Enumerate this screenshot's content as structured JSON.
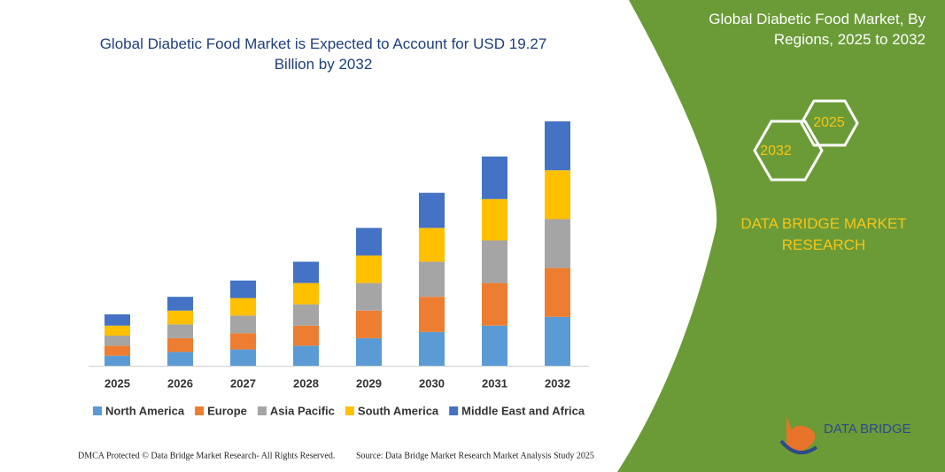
{
  "chart_data": {
    "type": "stacked_bar",
    "title": "Global Diabetic Food Market is Expected to Account for USD 19.27 Billion by 2032",
    "categories": [
      "2025",
      "2026",
      "2027",
      "2028",
      "2029",
      "2030",
      "2031",
      "2032"
    ],
    "series": [
      {
        "name": "North America",
        "color": "#5b9bd5",
        "values": [
          0.8,
          1.1,
          1.3,
          1.6,
          2.2,
          2.7,
          3.2,
          3.9
        ]
      },
      {
        "name": "Europe",
        "color": "#ed7d31",
        "values": [
          0.8,
          1.1,
          1.3,
          1.6,
          2.2,
          2.8,
          3.4,
          3.9
        ]
      },
      {
        "name": "Asia Pacific",
        "color": "#a5a5a5",
        "values": [
          0.8,
          1.1,
          1.4,
          1.7,
          2.2,
          2.8,
          3.4,
          3.9
        ]
      },
      {
        "name": "South America",
        "color": "#ffc000",
        "values": [
          0.8,
          1.1,
          1.4,
          1.7,
          2.2,
          2.7,
          3.3,
          3.9
        ]
      },
      {
        "name": "Middle East and Africa",
        "color": "#4472c4",
        "values": [
          0.9,
          1.1,
          1.4,
          1.7,
          2.2,
          2.8,
          3.4,
          3.9
        ]
      }
    ],
    "ylim": [
      0,
      20
    ],
    "grid": false,
    "legend": "bottom"
  },
  "panel": {
    "title": "Global Diabetic Food Market, By Regions, 2025 to 2032",
    "hex_small": "2025",
    "hex_large": "2032",
    "brand": "DATA BRIDGE MARKET RESEARCH"
  },
  "logo": {
    "text": "DATA BRIDGE"
  },
  "footer": {
    "left": "DMCA Protected © Data Bridge Market Research- All Rights Reserved.",
    "right": "Source: Data Bridge Market Research Market Analysis Study 2025"
  }
}
